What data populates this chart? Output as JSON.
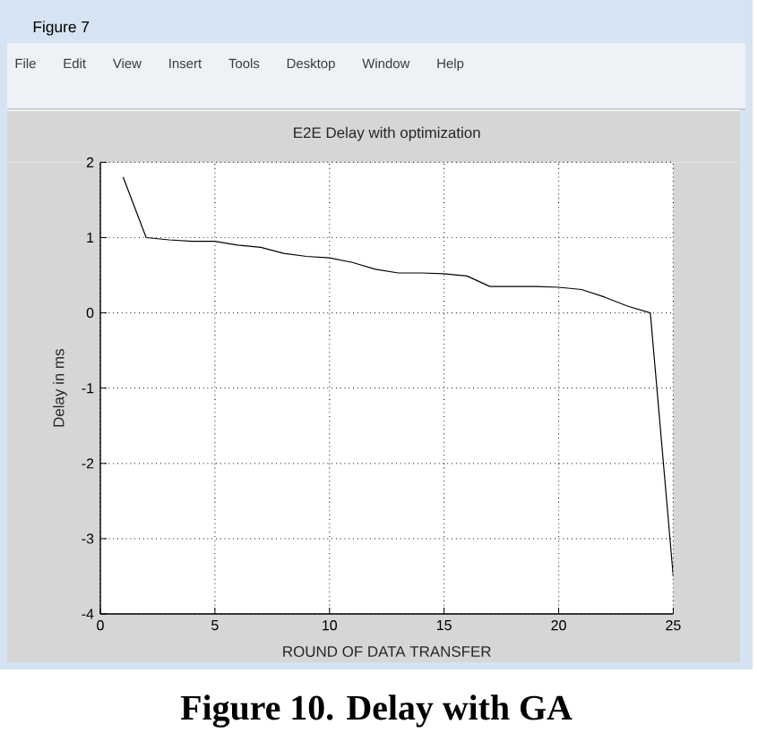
{
  "chart_data": {
    "type": "line",
    "title": "E2E Delay with optimization",
    "xlabel": "ROUND OF DATA TRANSFER",
    "ylabel": "Delay in ms",
    "x": [
      1,
      2,
      3,
      4,
      5,
      6,
      7,
      8,
      9,
      10,
      11,
      12,
      13,
      14,
      15,
      16,
      17,
      18,
      19,
      20,
      21,
      22,
      23,
      24,
      25
    ],
    "series": [
      {
        "color": "#000000",
        "values": [
          1.8,
          1.0,
          0.97,
          0.95,
          0.95,
          0.9,
          0.87,
          0.79,
          0.75,
          0.73,
          0.67,
          0.58,
          0.53,
          0.53,
          0.52,
          0.49,
          0.35,
          0.35,
          0.35,
          0.34,
          0.31,
          0.21,
          0.09,
          0.0,
          -3.5
        ]
      }
    ],
    "xlim": [
      0,
      25
    ],
    "ylim": [
      -4,
      2
    ],
    "xticks": [
      0,
      5,
      10,
      15,
      20,
      25
    ],
    "yticks": [
      -4,
      -3,
      -2,
      -1,
      0,
      1,
      2
    ],
    "grid": true,
    "line_style": "solid",
    "annotations": [
      "Figure 7",
      "File",
      "Edit",
      "View",
      "Insert",
      "Tools",
      "Desktop",
      "Window",
      "Help",
      "Figure 10. Delay with GA"
    ]
  }
}
